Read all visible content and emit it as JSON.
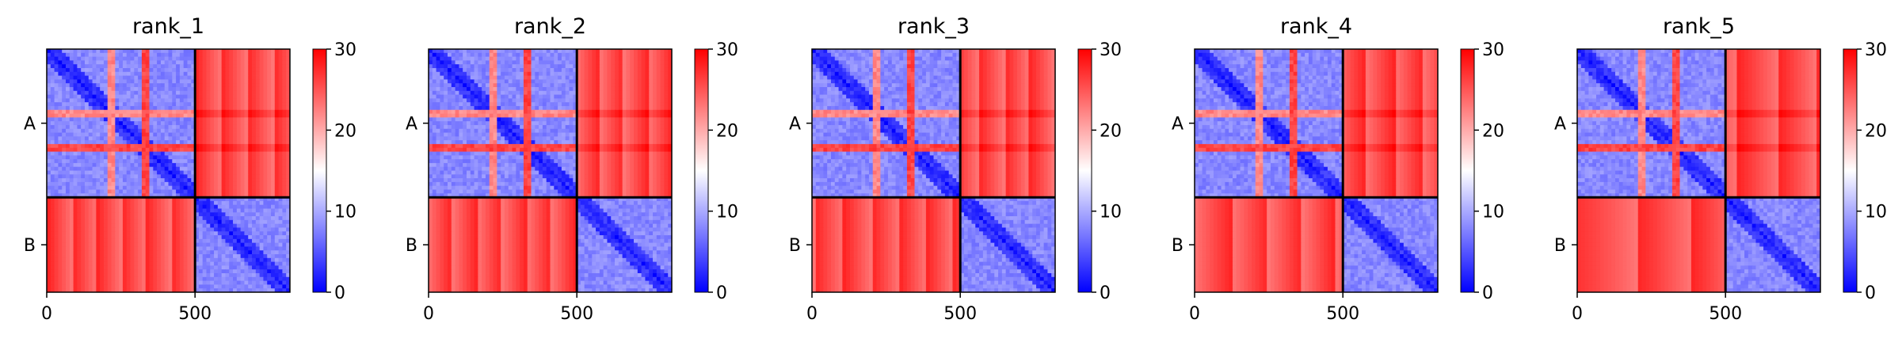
{
  "chart_data": {
    "type": "heatmap",
    "description": "",
    "colormap": {
      "name": "bwr",
      "low": "#0000ff",
      "mid": "#ffffff",
      "high": "#ff0000"
    },
    "colorbar": {
      "min": 0,
      "max": 30,
      "ticks": [
        "0",
        "10",
        "20",
        "30"
      ]
    },
    "x_ticks": [
      {
        "value": 0,
        "label": "0"
      },
      {
        "value": 500,
        "label": "500"
      }
    ],
    "total_length": 820,
    "chain_boundary": 500,
    "chains": [
      {
        "label": "A",
        "start": 0,
        "end": 500
      },
      {
        "label": "B",
        "start": 500,
        "end": 820
      }
    ],
    "intra_chain_typical_value": 8,
    "inter_chain_typical_value": 28,
    "panels": [
      {
        "title": "rank_1"
      },
      {
        "title": "rank_2"
      },
      {
        "title": "rank_3"
      },
      {
        "title": "rank_4"
      },
      {
        "title": "rank_5"
      }
    ]
  }
}
